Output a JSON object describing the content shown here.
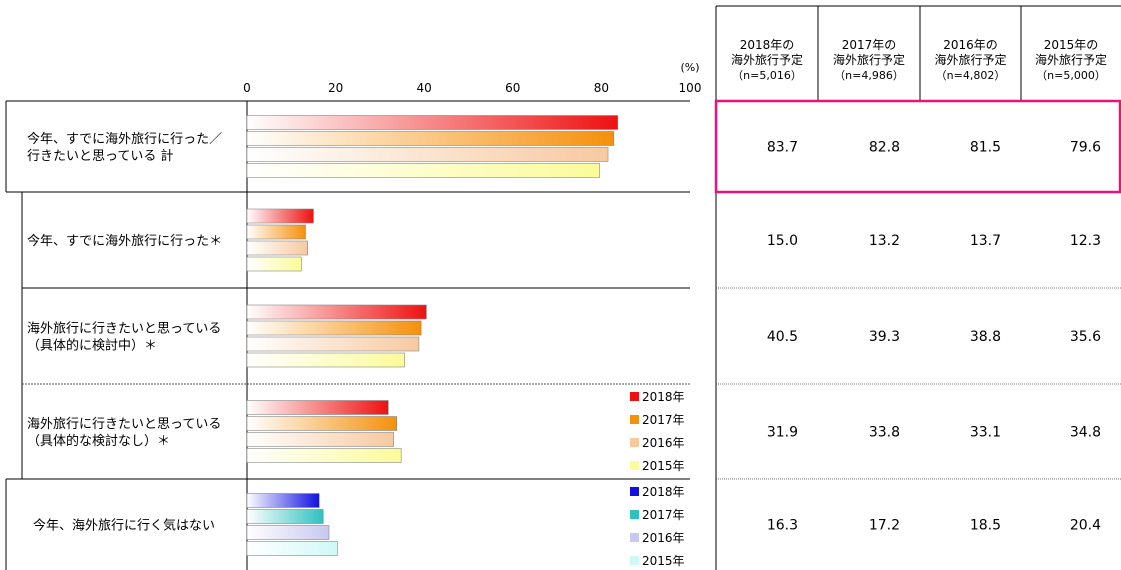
{
  "chart_data": {
    "type": "bar",
    "orientation": "horizontal",
    "xlim": [
      0,
      100
    ],
    "x_ticks": [
      "0",
      "20",
      "40",
      "60",
      "80",
      "100"
    ],
    "x_unit": "(%)",
    "categories": [
      "今年、すでに海外旅行に行った／\n行きたいと思っている 計",
      "今年、すでに海外旅行に行った＊",
      "海外旅行に行きたいと思っている\n（具体的に検討中）＊",
      "海外旅行に行きたいと思っている\n（具体的な検討なし）＊",
      "今年、海外旅行に行く気はない"
    ],
    "series": [
      {
        "name": "2018年",
        "values": [
          83.7,
          15.0,
          40.5,
          31.9,
          16.3
        ]
      },
      {
        "name": "2017年",
        "values": [
          82.8,
          13.2,
          39.3,
          33.8,
          17.2
        ]
      },
      {
        "name": "2016年",
        "values": [
          81.5,
          13.7,
          38.8,
          33.1,
          18.5
        ]
      },
      {
        "name": "2015年",
        "values": [
          79.6,
          12.3,
          35.6,
          34.8,
          20.4
        ]
      }
    ],
    "legends": [
      {
        "placement": "right",
        "entries": [
          "2018年",
          "2017年",
          "2016年",
          "2015年"
        ],
        "colors": [
          "#ee1111",
          "#f5900a",
          "#f7c9a0",
          "#fbfb9a"
        ]
      },
      {
        "placement": "right",
        "entries": [
          "2018年",
          "2017年",
          "2016年",
          "2015年"
        ],
        "colors": [
          "#1010e0",
          "#30c0c0",
          "#c8c8f0",
          "#d0f8f8"
        ]
      }
    ],
    "bar_colors_warm": [
      "#ee1111",
      "#f5900a",
      "#f7c9a0",
      "#fbfb9a"
    ],
    "bar_colors_cool": [
      "#1010e0",
      "#30c0c0",
      "#c8c8f0",
      "#d0f8f8"
    ]
  },
  "table": {
    "headers": [
      {
        "line1": "2018年の",
        "line2": "海外旅行予定",
        "n": "（n=5,016）"
      },
      {
        "line1": "2017年の",
        "line2": "海外旅行予定",
        "n": "（n=4,986）"
      },
      {
        "line1": "2016年の",
        "line2": "海外旅行予定",
        "n": "（n=4,802）"
      },
      {
        "line1": "2015年の",
        "line2": "海外旅行予定",
        "n": "（n=5,000）"
      }
    ],
    "rows": [
      [
        "83.7",
        "82.8",
        "81.5",
        "79.6"
      ],
      [
        "15.0",
        "13.2",
        "13.7",
        "12.3"
      ],
      [
        "40.5",
        "39.3",
        "38.8",
        "35.6"
      ],
      [
        "31.9",
        "33.8",
        "33.1",
        "34.8"
      ],
      [
        "16.3",
        "17.2",
        "18.5",
        "20.4"
      ]
    ],
    "highlight_color": "#e8127a"
  }
}
